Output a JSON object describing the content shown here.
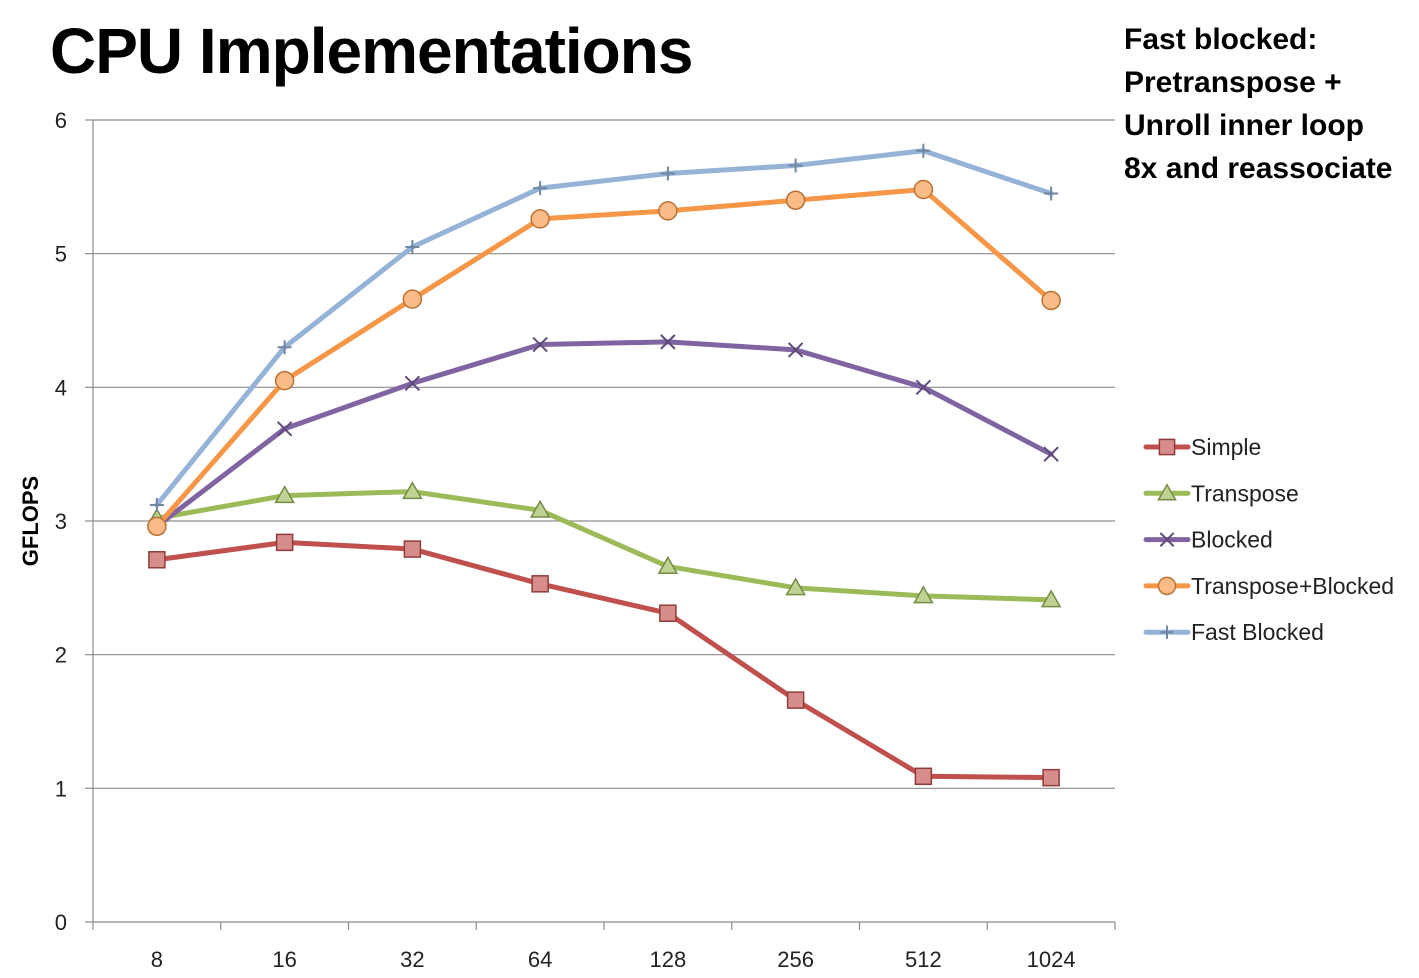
{
  "slide": {
    "title": "CPU Implementations",
    "note_lines": [
      "Fast blocked:",
      "Pretranspose +",
      "Unroll inner loop",
      "8x and reassociate"
    ]
  },
  "chart_data": {
    "type": "line",
    "title": "CPU Implementations",
    "xlabel": "",
    "ylabel": "GFLOPS",
    "categories": [
      "8",
      "16",
      "32",
      "64",
      "128",
      "256",
      "512",
      "1024"
    ],
    "ylim": [
      0,
      6
    ],
    "yticks": [
      0,
      1,
      2,
      3,
      4,
      5,
      6
    ],
    "grid": true,
    "legend_position": "right",
    "series": [
      {
        "name": "Simple",
        "color": "#C0504D",
        "marker": "square",
        "values": [
          2.71,
          2.84,
          2.79,
          2.53,
          2.31,
          1.66,
          1.09,
          1.08
        ]
      },
      {
        "name": "Transpose",
        "color": "#9BBB59",
        "marker": "triangle",
        "values": [
          3.02,
          3.19,
          3.22,
          3.08,
          2.66,
          2.5,
          2.44,
          2.41
        ]
      },
      {
        "name": "Blocked",
        "color": "#8064A2",
        "marker": "x",
        "values": [
          2.96,
          3.69,
          4.03,
          4.32,
          4.34,
          4.28,
          4.0,
          3.5
        ]
      },
      {
        "name": "Transpose+Blocked",
        "color": "#F79646",
        "marker": "circle",
        "values": [
          2.96,
          4.05,
          4.66,
          5.26,
          5.32,
          5.4,
          5.48,
          4.65
        ]
      },
      {
        "name": "Fast Blocked",
        "color": "#95B3D7",
        "marker": "plus",
        "values": [
          3.12,
          4.3,
          5.05,
          5.49,
          5.6,
          5.66,
          5.77,
          5.45
        ]
      }
    ]
  }
}
